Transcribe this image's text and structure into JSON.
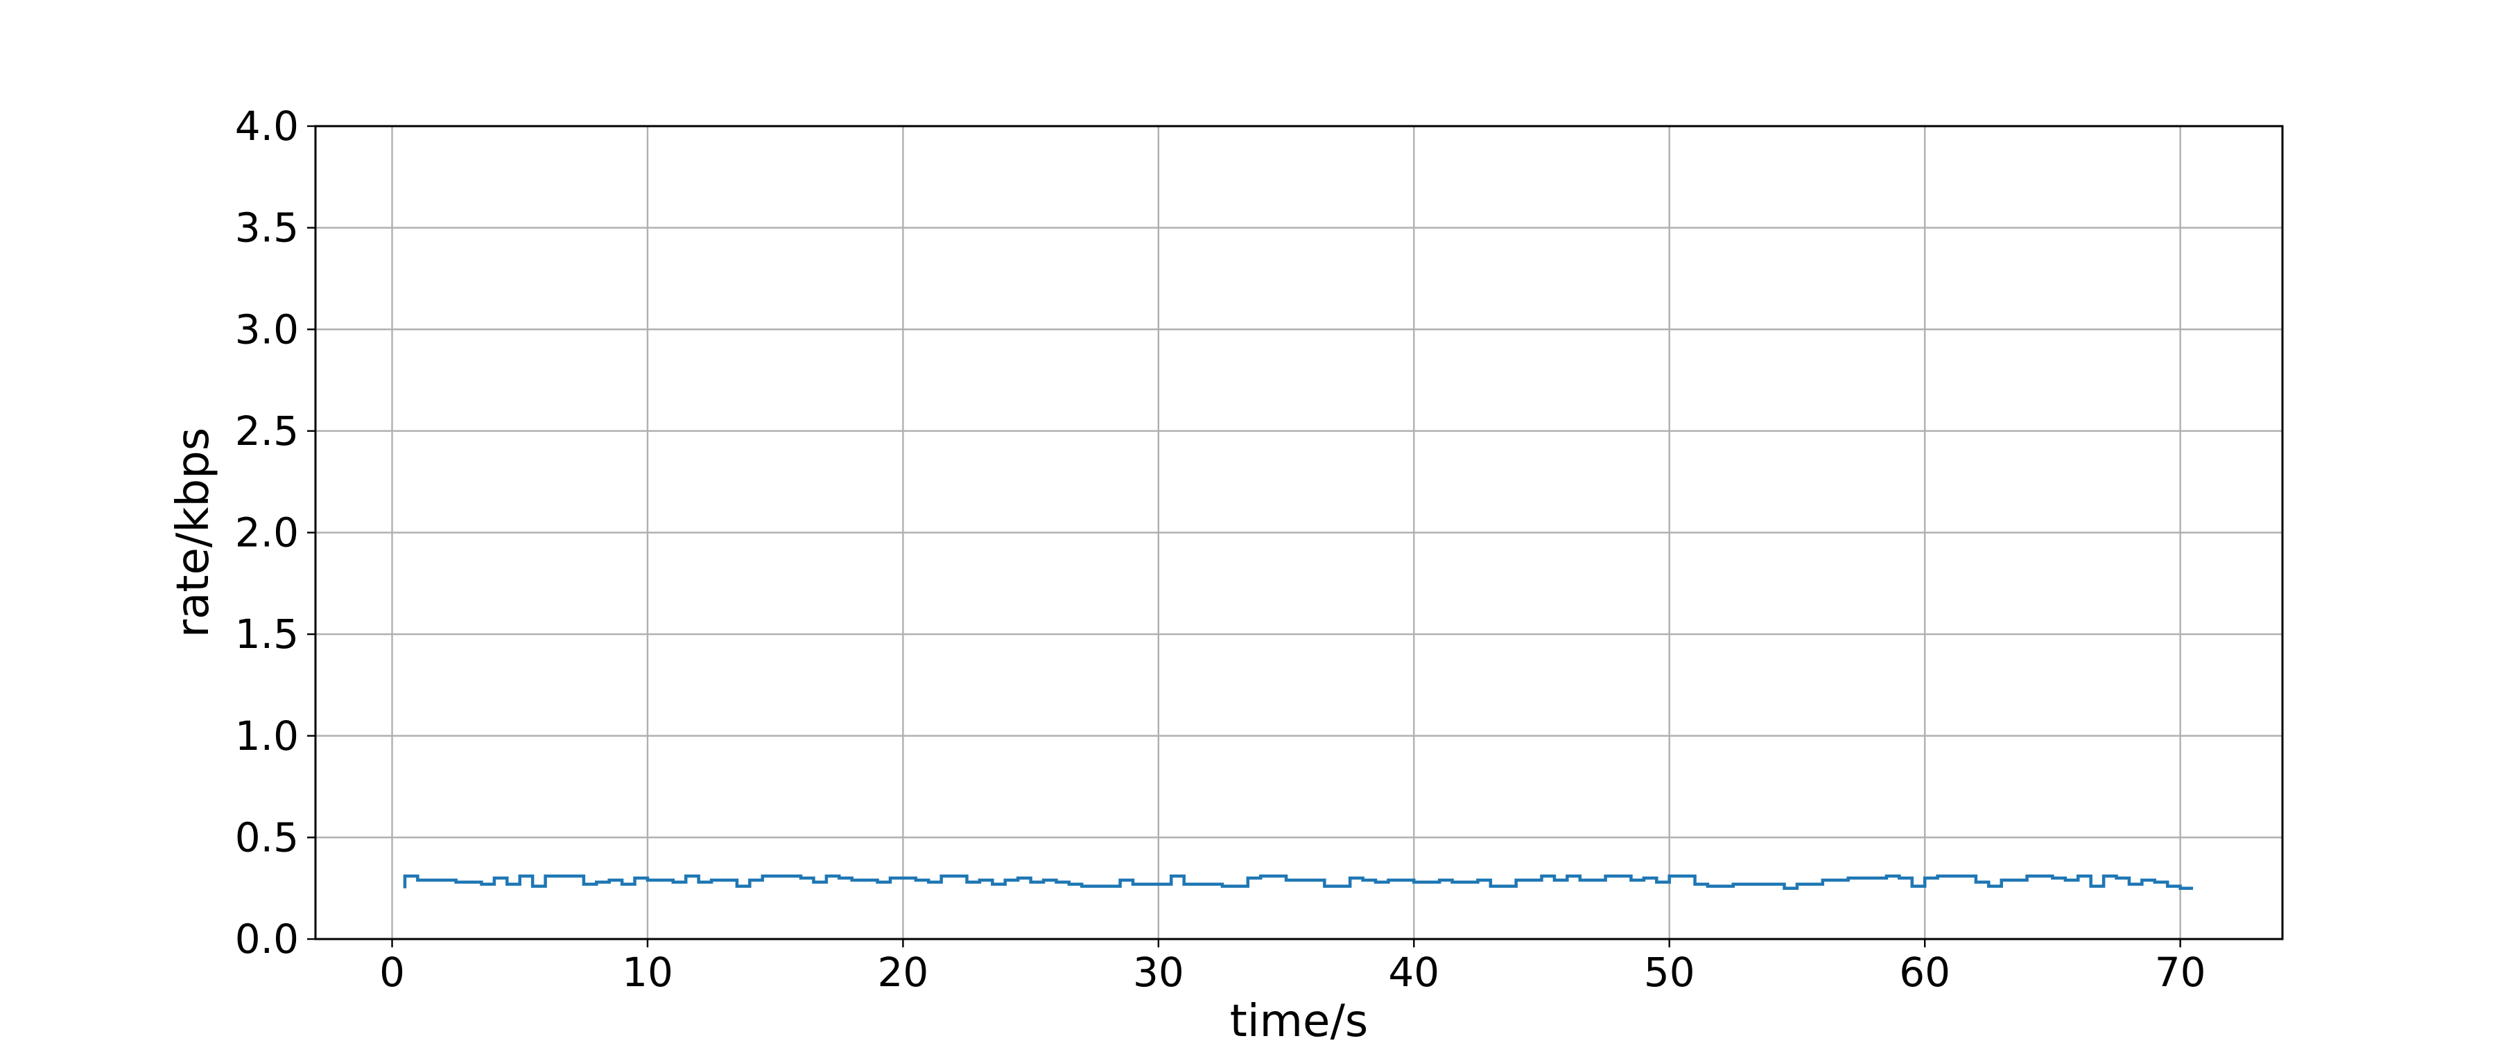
{
  "chart_data": {
    "type": "line",
    "title": "",
    "xlabel": "time/s",
    "ylabel": "rate/kbps",
    "xlim": [
      -3,
      74
    ],
    "ylim": [
      0,
      4.0
    ],
    "grid": true,
    "line_style": "steps",
    "x_ticks": [
      0,
      10,
      20,
      30,
      40,
      50,
      60,
      70
    ],
    "x_tick_labels": [
      "0",
      "10",
      "20",
      "30",
      "40",
      "50",
      "60",
      "70"
    ],
    "y_ticks": [
      0,
      0.5,
      1.0,
      1.5,
      2.0,
      2.5,
      3.0,
      3.5,
      4.0
    ],
    "y_tick_labels": [
      "0.0",
      "0.5",
      "1.0",
      "1.5",
      "2.0",
      "2.5",
      "3.0",
      "3.5",
      "4.0"
    ],
    "series": [
      {
        "color": "#1f77b4",
        "x": [
          0.5,
          0.5,
          1.0,
          1.5,
          2.0,
          2.5,
          3.0,
          3.5,
          4.0,
          4.5,
          5.0,
          5.5,
          6.0,
          6.5,
          7.0,
          7.5,
          8.0,
          8.5,
          9.0,
          9.5,
          10.0,
          10.5,
          11.0,
          11.5,
          12.0,
          12.5,
          13.0,
          13.5,
          14.0,
          14.5,
          15.0,
          15.5,
          16.0,
          16.5,
          17.0,
          17.5,
          18.0,
          18.5,
          19.0,
          19.5,
          20.0,
          20.5,
          21.0,
          21.5,
          22.0,
          22.5,
          23.0,
          23.5,
          24.0,
          24.5,
          25.0,
          25.5,
          26.0,
          26.5,
          27.0,
          27.5,
          28.0,
          28.5,
          29.0,
          29.5,
          30.0,
          30.5,
          31.0,
          31.5,
          32.0,
          32.5,
          33.0,
          33.5,
          34.0,
          34.5,
          35.0,
          35.5,
          36.0,
          36.5,
          37.0,
          37.5,
          38.0,
          38.5,
          39.0,
          39.5,
          40.0,
          40.5,
          41.0,
          41.5,
          42.0,
          42.5,
          43.0,
          43.5,
          44.0,
          44.5,
          45.0,
          45.5,
          46.0,
          46.5,
          47.0,
          47.5,
          48.0,
          48.5,
          49.0,
          49.5,
          50.0,
          50.5,
          51.0,
          51.5,
          52.0,
          52.5,
          53.0,
          53.5,
          54.0,
          54.5,
          55.0,
          55.5,
          56.0,
          56.5,
          57.0,
          57.5,
          58.0,
          58.5,
          59.0,
          59.5,
          60.0,
          60.5,
          61.0,
          61.5,
          62.0,
          62.5,
          63.0,
          63.5,
          64.0,
          64.5,
          65.0,
          65.5,
          66.0,
          66.5,
          67.0,
          67.5,
          68.0,
          68.5,
          69.0,
          69.5,
          70.0,
          70.5
        ],
        "y": [
          0.25,
          0.31,
          0.29,
          0.29,
          0.29,
          0.28,
          0.28,
          0.27,
          0.3,
          0.27,
          0.31,
          0.26,
          0.31,
          0.31,
          0.31,
          0.27,
          0.28,
          0.29,
          0.27,
          0.3,
          0.29,
          0.29,
          0.28,
          0.31,
          0.28,
          0.29,
          0.29,
          0.26,
          0.29,
          0.31,
          0.31,
          0.31,
          0.3,
          0.28,
          0.31,
          0.3,
          0.29,
          0.29,
          0.28,
          0.3,
          0.3,
          0.29,
          0.28,
          0.31,
          0.31,
          0.28,
          0.29,
          0.27,
          0.29,
          0.3,
          0.28,
          0.29,
          0.28,
          0.27,
          0.26,
          0.26,
          0.26,
          0.29,
          0.27,
          0.27,
          0.27,
          0.31,
          0.27,
          0.27,
          0.27,
          0.26,
          0.26,
          0.3,
          0.31,
          0.31,
          0.29,
          0.29,
          0.29,
          0.26,
          0.26,
          0.3,
          0.29,
          0.28,
          0.29,
          0.29,
          0.28,
          0.28,
          0.29,
          0.28,
          0.28,
          0.29,
          0.26,
          0.26,
          0.29,
          0.29,
          0.31,
          0.29,
          0.31,
          0.29,
          0.29,
          0.31,
          0.31,
          0.29,
          0.3,
          0.28,
          0.31,
          0.31,
          0.27,
          0.26,
          0.26,
          0.27,
          0.27,
          0.27,
          0.27,
          0.25,
          0.27,
          0.27,
          0.29,
          0.29,
          0.3,
          0.3,
          0.3,
          0.31,
          0.3,
          0.26,
          0.3,
          0.31,
          0.31,
          0.31,
          0.28,
          0.26,
          0.29,
          0.29,
          0.31,
          0.31,
          0.3,
          0.29,
          0.31,
          0.26,
          0.31,
          0.3,
          0.27,
          0.29,
          0.28,
          0.26,
          0.25,
          0.25
        ]
      }
    ]
  }
}
